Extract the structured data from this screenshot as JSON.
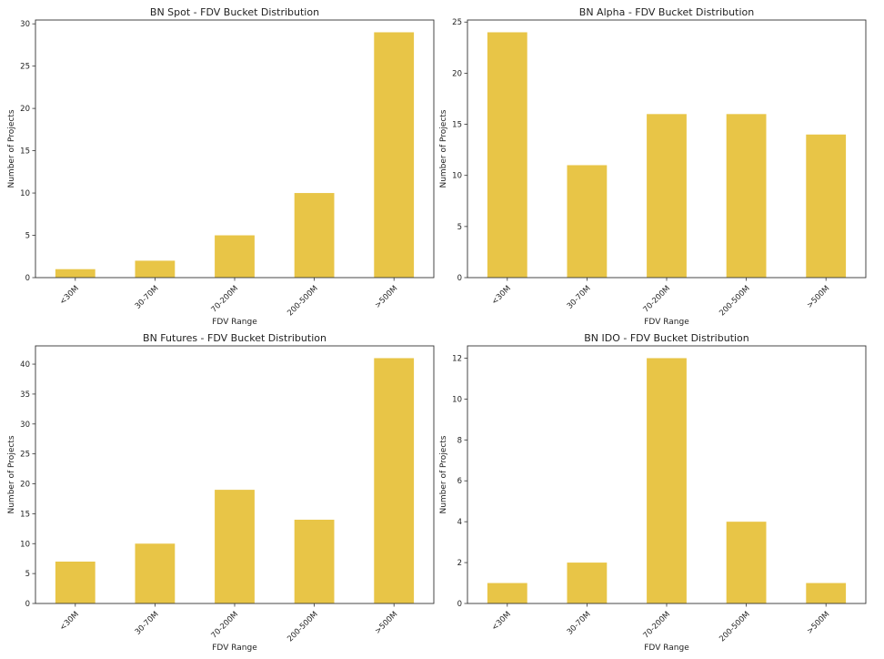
{
  "chart_data": [
    {
      "type": "bar",
      "title": "BN Spot - FDV Bucket Distribution",
      "xlabel": "FDV Range",
      "ylabel": "Number of Projects",
      "categories": [
        "<30M",
        "30-70M",
        "70-200M",
        "200-500M",
        ">500M"
      ],
      "values": [
        1,
        2,
        5,
        10,
        29
      ],
      "ylim": [
        0,
        30.45
      ],
      "yticks": [
        0,
        5,
        10,
        15,
        20,
        25,
        30
      ],
      "grid": false,
      "color": "#E8C547"
    },
    {
      "type": "bar",
      "title": "BN Alpha - FDV Bucket Distribution",
      "xlabel": "FDV Range",
      "ylabel": "Number of Projects",
      "categories": [
        "<30M",
        "30-70M",
        "70-200M",
        "200-500M",
        ">500M"
      ],
      "values": [
        24,
        11,
        16,
        16,
        14
      ],
      "ylim": [
        0,
        25.2
      ],
      "yticks": [
        0,
        5,
        10,
        15,
        20,
        25
      ],
      "grid": false,
      "color": "#E8C547"
    },
    {
      "type": "bar",
      "title": "BN Futures - FDV Bucket Distribution",
      "xlabel": "FDV Range",
      "ylabel": "Number of Projects",
      "categories": [
        "<30M",
        "30-70M",
        "70-200M",
        "200-500M",
        ">500M"
      ],
      "values": [
        7,
        10,
        19,
        14,
        41
      ],
      "ylim": [
        0,
        43.05
      ],
      "yticks": [
        0,
        5,
        10,
        15,
        20,
        25,
        30,
        35,
        40
      ],
      "grid": false,
      "color": "#E8C547"
    },
    {
      "type": "bar",
      "title": "BN IDO - FDV Bucket Distribution",
      "xlabel": "FDV Range",
      "ylabel": "Number of Projects",
      "categories": [
        "<30M",
        "30-70M",
        "70-200M",
        "200-500M",
        ">500M"
      ],
      "values": [
        1,
        2,
        12,
        4,
        1
      ],
      "ylim": [
        0,
        12.6
      ],
      "yticks": [
        0,
        2,
        4,
        6,
        8,
        10,
        12
      ],
      "grid": false,
      "color": "#E8C547"
    }
  ]
}
